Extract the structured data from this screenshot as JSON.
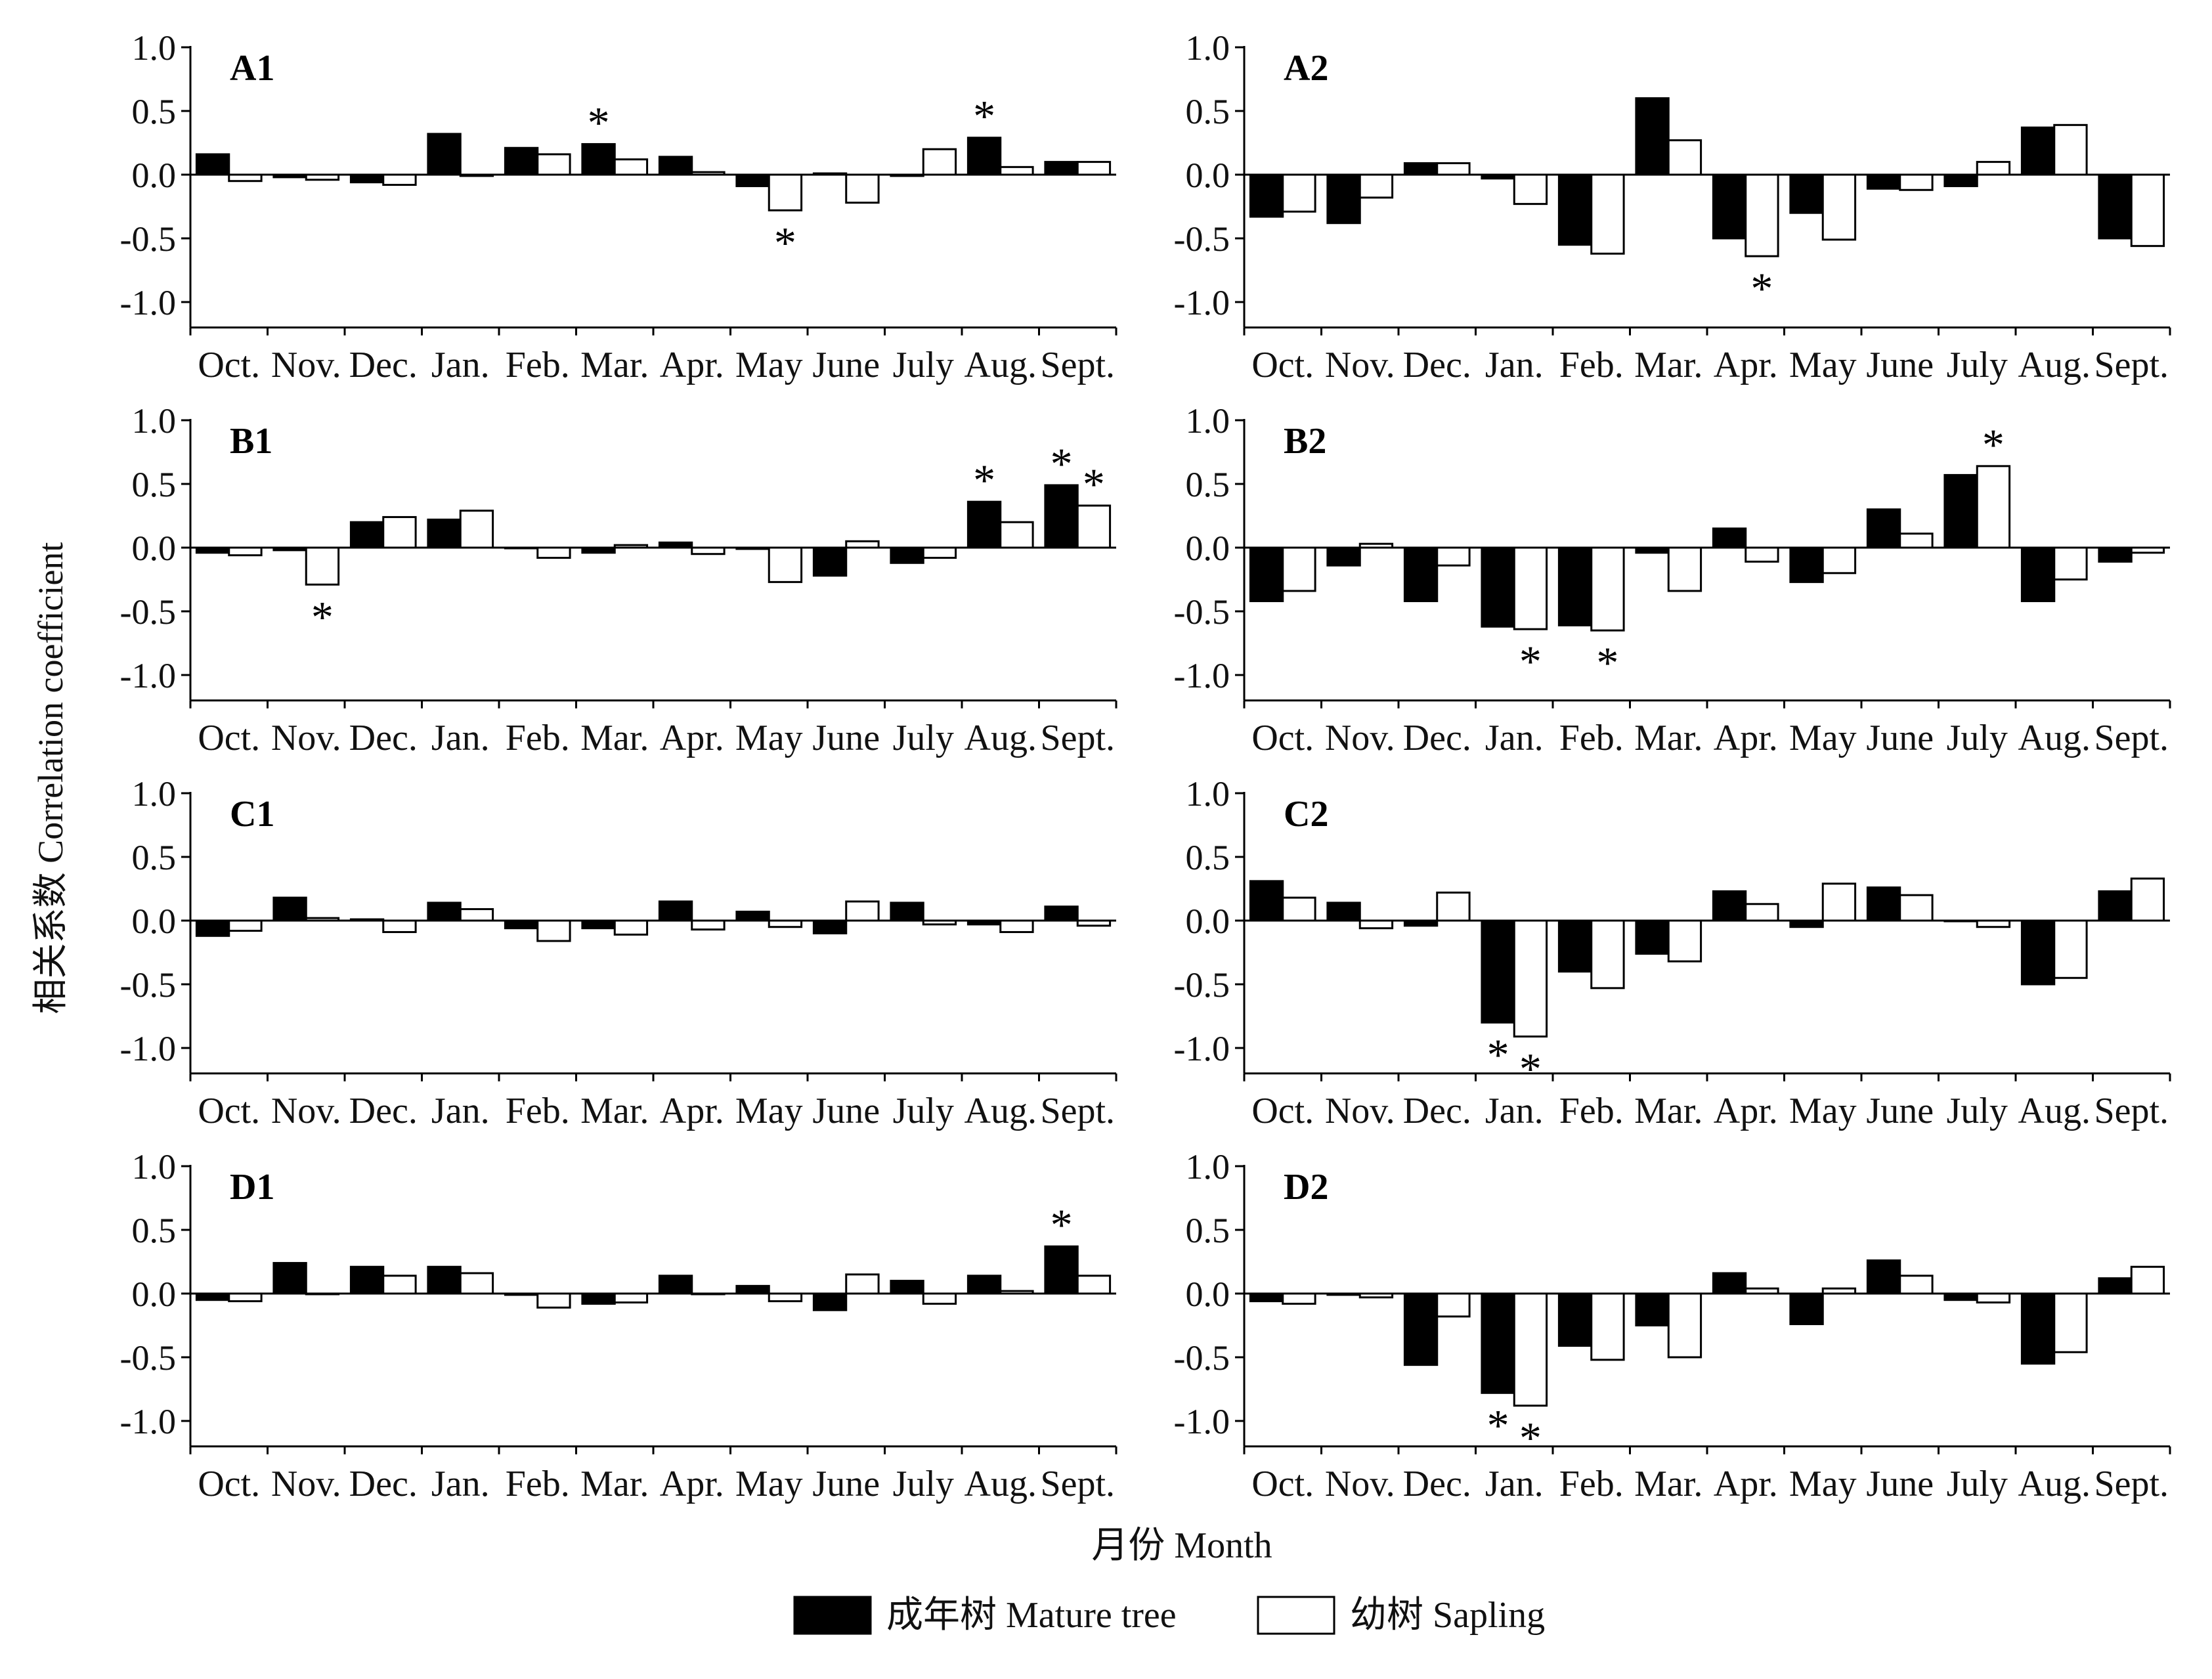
{
  "figure": {
    "ylabel": "相关系数 Correlation coefficient",
    "xlabel": "月份 Month",
    "legend": [
      {
        "name": "成年树 Mature tree",
        "color": "#000000"
      },
      {
        "name": "幼树 Sapling",
        "color": "#ffffff"
      }
    ]
  },
  "chart_data": [
    {
      "type": "bar",
      "panel": "A1",
      "categories": [
        "Oct.",
        "Nov.",
        "Dec.",
        "Jan.",
        "Feb.",
        "Mar.",
        "Apr.",
        "May",
        "June",
        "July",
        "Aug.",
        "Sept."
      ],
      "ylim": [
        -1.2,
        1.0
      ],
      "yticks": [
        "1.0",
        "0.5",
        "0.0",
        "-0.5",
        "-1.0"
      ],
      "series": [
        {
          "name": "成年树 Mature tree",
          "values": [
            0.16,
            -0.02,
            -0.06,
            0.32,
            0.21,
            0.24,
            0.14,
            -0.09,
            0.01,
            -0.01,
            0.29,
            0.1
          ]
        },
        {
          "name": "幼树 Sapling",
          "values": [
            -0.05,
            -0.04,
            -0.08,
            -0.01,
            0.16,
            0.12,
            0.02,
            -0.28,
            -0.22,
            0.2,
            0.06,
            0.1
          ]
        }
      ],
      "significant": [
        [
          0,
          5
        ],
        [
          1,
          7
        ],
        [
          0,
          10
        ]
      ]
    },
    {
      "type": "bar",
      "panel": "A2",
      "categories": [
        "Oct.",
        "Nov.",
        "Dec.",
        "Jan.",
        "Feb.",
        "Mar.",
        "Apr.",
        "May",
        "June",
        "July",
        "Aug.",
        "Sept."
      ],
      "ylim": [
        -1.2,
        1.0
      ],
      "yticks": [
        "1.0",
        "0.5",
        "0.0",
        "-0.5",
        "-1.0"
      ],
      "series": [
        {
          "name": "成年树 Mature tree",
          "values": [
            -0.33,
            -0.38,
            0.09,
            -0.03,
            -0.55,
            0.6,
            -0.5,
            -0.3,
            -0.11,
            -0.09,
            0.37,
            -0.5
          ]
        },
        {
          "name": "幼树 Sapling",
          "values": [
            -0.29,
            -0.18,
            0.09,
            -0.23,
            -0.62,
            0.27,
            -0.64,
            -0.51,
            -0.12,
            0.1,
            0.39,
            -0.56
          ]
        }
      ],
      "significant": [
        [
          1,
          6
        ]
      ]
    },
    {
      "type": "bar",
      "panel": "B1",
      "categories": [
        "Oct.",
        "Nov.",
        "Dec.",
        "Jan.",
        "Feb.",
        "Mar.",
        "Apr.",
        "May",
        "June",
        "July",
        "Aug.",
        "Sept."
      ],
      "ylim": [
        -1.2,
        1.0
      ],
      "yticks": [
        "1.0",
        "0.5",
        "0.0",
        "-0.5",
        "-1.0"
      ],
      "series": [
        {
          "name": "成年树 Mature tree",
          "values": [
            -0.04,
            -0.02,
            0.2,
            0.22,
            0.0,
            -0.04,
            0.04,
            -0.01,
            -0.22,
            -0.12,
            0.36,
            0.49
          ]
        },
        {
          "name": "幼树 Sapling",
          "values": [
            -0.06,
            -0.29,
            0.24,
            0.29,
            -0.08,
            0.02,
            -0.05,
            -0.27,
            0.05,
            -0.08,
            0.2,
            0.33
          ]
        }
      ],
      "significant": [
        [
          1,
          1
        ],
        [
          0,
          10
        ],
        [
          0,
          11
        ],
        [
          1,
          11
        ]
      ]
    },
    {
      "type": "bar",
      "panel": "B2",
      "categories": [
        "Oct.",
        "Nov.",
        "Dec.",
        "Jan.",
        "Feb.",
        "Mar.",
        "Apr.",
        "May",
        "June",
        "July",
        "Aug.",
        "Sept."
      ],
      "ylim": [
        -1.2,
        1.0
      ],
      "yticks": [
        "1.0",
        "0.5",
        "0.0",
        "-0.5",
        "-1.0"
      ],
      "series": [
        {
          "name": "成年树 Mature tree",
          "values": [
            -0.42,
            -0.14,
            -0.42,
            -0.62,
            -0.61,
            -0.04,
            0.15,
            -0.27,
            0.3,
            0.57,
            -0.42,
            -0.11
          ]
        },
        {
          "name": "幼树 Sapling",
          "values": [
            -0.34,
            0.03,
            -0.14,
            -0.64,
            -0.65,
            -0.34,
            -0.11,
            -0.2,
            0.11,
            0.64,
            -0.25,
            -0.04
          ]
        }
      ],
      "significant": [
        [
          1,
          3
        ],
        [
          1,
          4
        ],
        [
          1,
          9
        ]
      ]
    },
    {
      "type": "bar",
      "panel": "C1",
      "categories": [
        "Oct.",
        "Nov.",
        "Dec.",
        "Jan.",
        "Feb.",
        "Mar.",
        "Apr.",
        "May",
        "June",
        "July",
        "Aug.",
        "Sept."
      ],
      "ylim": [
        -1.2,
        1.0
      ],
      "yticks": [
        "1.0",
        "0.5",
        "0.0",
        "-0.5",
        "-1.0"
      ],
      "series": [
        {
          "name": "成年树 Mature tree",
          "values": [
            -0.12,
            0.18,
            0.01,
            0.14,
            -0.06,
            -0.06,
            0.15,
            0.07,
            -0.1,
            0.14,
            -0.03,
            0.11
          ]
        },
        {
          "name": "幼树 Sapling",
          "values": [
            -0.08,
            0.02,
            -0.09,
            0.09,
            -0.16,
            -0.11,
            -0.07,
            -0.05,
            0.15,
            -0.03,
            -0.09,
            -0.04
          ]
        }
      ],
      "significant": []
    },
    {
      "type": "bar",
      "panel": "C2",
      "categories": [
        "Oct.",
        "Nov.",
        "Dec.",
        "Jan.",
        "Feb.",
        "Mar.",
        "Apr.",
        "May",
        "June",
        "July",
        "Aug.",
        "Sept."
      ],
      "ylim": [
        -1.2,
        1.0
      ],
      "yticks": [
        "1.0",
        "0.5",
        "0.0",
        "-0.5",
        "-1.0"
      ],
      "series": [
        {
          "name": "成年树 Mature tree",
          "values": [
            0.31,
            0.14,
            -0.04,
            -0.8,
            -0.4,
            -0.26,
            0.23,
            -0.05,
            0.26,
            0.0,
            -0.5,
            0.23
          ]
        },
        {
          "name": "幼树 Sapling",
          "values": [
            0.18,
            -0.06,
            0.22,
            -0.91,
            -0.53,
            -0.32,
            0.13,
            0.29,
            0.2,
            -0.05,
            -0.45,
            0.33
          ]
        }
      ],
      "significant": [
        [
          0,
          3
        ],
        [
          1,
          3
        ]
      ]
    },
    {
      "type": "bar",
      "panel": "D1",
      "categories": [
        "Oct.",
        "Nov.",
        "Dec.",
        "Jan.",
        "Feb.",
        "Mar.",
        "Apr.",
        "May",
        "June",
        "July",
        "Aug.",
        "Sept."
      ],
      "ylim": [
        -1.2,
        1.0
      ],
      "yticks": [
        "1.0",
        "0.5",
        "0.0",
        "-0.5",
        "-1.0"
      ],
      "series": [
        {
          "name": "成年树 Mature tree",
          "values": [
            -0.05,
            0.24,
            0.21,
            0.21,
            -0.01,
            -0.08,
            0.14,
            0.06,
            -0.13,
            0.1,
            0.14,
            0.37
          ]
        },
        {
          "name": "幼树 Sapling",
          "values": [
            -0.06,
            0.0,
            0.14,
            0.16,
            -0.11,
            -0.07,
            0.0,
            -0.06,
            0.15,
            -0.08,
            0.02,
            0.14
          ]
        }
      ],
      "significant": [
        [
          0,
          11
        ]
      ]
    },
    {
      "type": "bar",
      "panel": "D2",
      "categories": [
        "Oct.",
        "Nov.",
        "Dec.",
        "Jan.",
        "Feb.",
        "Mar.",
        "Apr.",
        "May",
        "June",
        "July",
        "Aug.",
        "Sept."
      ],
      "ylim": [
        -1.2,
        1.0
      ],
      "yticks": [
        "1.0",
        "0.5",
        "0.0",
        "-0.5",
        "-1.0"
      ],
      "series": [
        {
          "name": "成年树 Mature tree",
          "values": [
            -0.06,
            -0.01,
            -0.56,
            -0.78,
            -0.41,
            -0.25,
            0.16,
            -0.24,
            0.26,
            -0.05,
            -0.55,
            0.12
          ]
        },
        {
          "name": "幼树 Sapling",
          "values": [
            -0.08,
            -0.03,
            -0.18,
            -0.88,
            -0.52,
            -0.5,
            0.04,
            0.04,
            0.14,
            -0.07,
            -0.46,
            0.21
          ]
        }
      ],
      "significant": [
        [
          0,
          3
        ],
        [
          1,
          3
        ]
      ]
    }
  ]
}
